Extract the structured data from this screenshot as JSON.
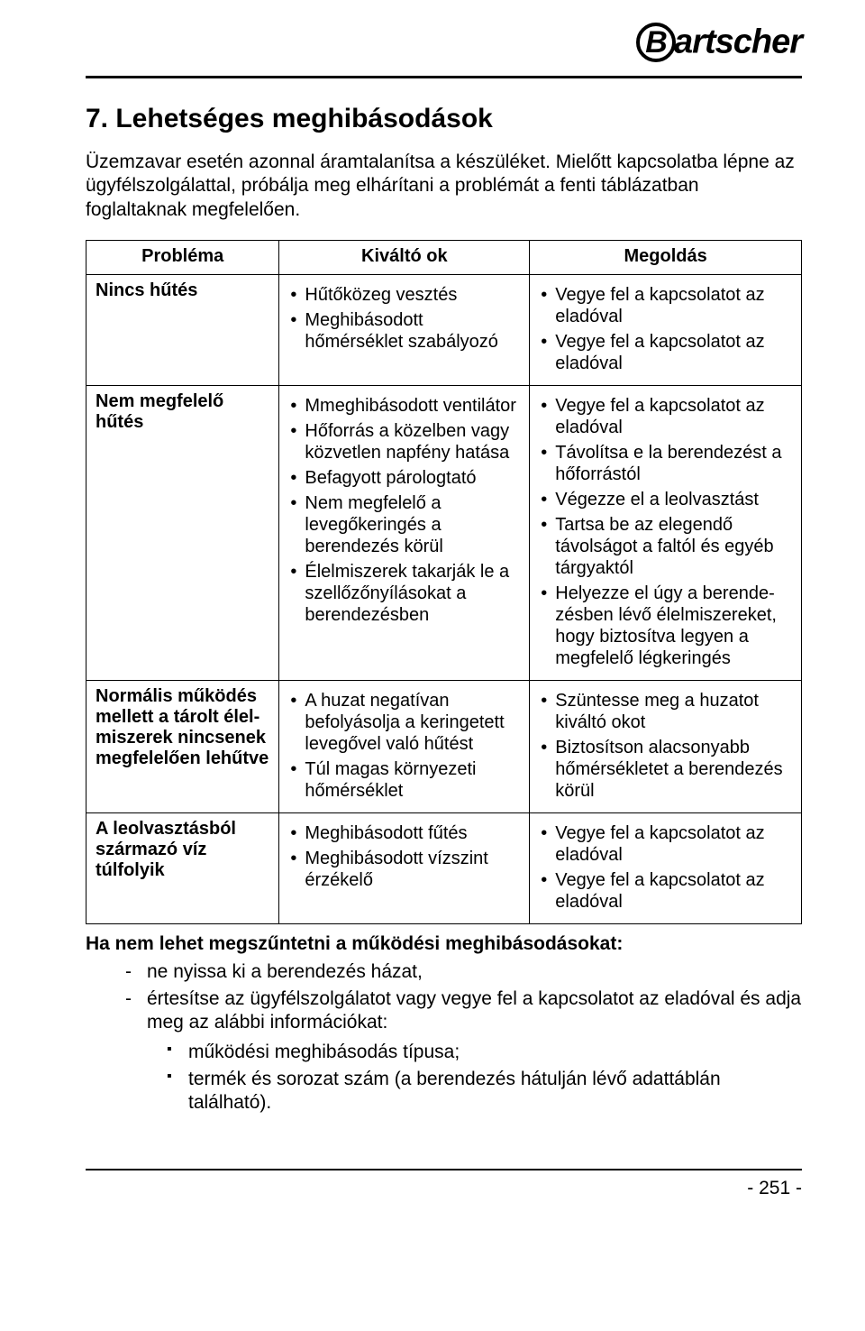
{
  "brand": "artscher",
  "brand_b": "B",
  "heading": "7. Lehetséges meghibásodások",
  "intro": "Üzemzavar esetén azonnal áramtalanítsa a készüléket. Mielőtt kapcsolatba lépne az ügyfélszolgálattal, próbálja meg elhárítani a problémát a fenti táblázatban foglaltaknak megfelelően.",
  "table": {
    "headers": {
      "problem": "Probléma",
      "cause": "Kiváltó ok",
      "solution": "Megoldás"
    },
    "rows": [
      {
        "problem": "Nincs hűtés",
        "causes": [
          "Hűtőközeg vesztés",
          "Meghibásodott hőmérséklet szabályozó"
        ],
        "solutions": [
          "Vegye fel a kapcsolatot az eladóval",
          "Vegye fel a kapcsolatot az eladóval"
        ]
      },
      {
        "problem": "Nem megfelelő hűtés",
        "causes": [
          "Mmeghibásodott ventilátor",
          "Hőforrás a közelben vagy közvetlen napfény hatása",
          "Befagyott párologtató",
          "Nem megfelelő a levegőkeringés a berendezés körül",
          "Élelmiszerek takarják le a szellőzőnyílásokat a berendezésben"
        ],
        "solutions": [
          "Vegye fel a kapcsolatot az eladóval",
          "Távolítsa e la berendezést a hőforrástól",
          "Végezze el a leolvasztást",
          "Tartsa be az elegendő távolságot a faltól és egyéb tárgyaktól",
          "Helyezze el úgy a berende-zésben lévő élelmiszereket, hogy biztosítva legyen a megfelelő légkeringés"
        ]
      },
      {
        "problem": "Normális működés mellett a tárolt élel-miszerek nincsenek megfelelően lehűtve",
        "causes": [
          "A huzat negatívan befolyásolja a keringetett levegővel való hűtést",
          "Túl magas környezeti hőmérséklet"
        ],
        "solutions": [
          "Szüntesse meg a huzatot kiváltó okot",
          "Biztosítson alacsonyabb hőmérsékletet a berendezés körül"
        ]
      },
      {
        "problem": "A leolvasztásból származó víz túlfolyik",
        "causes": [
          "Meghibásodott fűtés",
          "Meghibásodott vízszint érzékelő"
        ],
        "solutions": [
          "Vegye fel a kapcsolatot az eladóval",
          "Vegye fel a kapcsolatot az eladóval"
        ]
      }
    ]
  },
  "after_table_heading": "Ha nem lehet megszűntetni a működési meghibásodásokat:",
  "dash_list": [
    "ne nyissa ki a berendezés házat,",
    "értesítse az ügyfélszolgálatot vagy vegye fel a kapcsolatot az eladóval és adja meg az alábbi információkat:"
  ],
  "square_list": [
    "működési meghibásodás típusa;",
    "termék és sorozat szám (a berendezés hátulján lévő adattáblán található)."
  ],
  "page_number": "- 251 -",
  "colors": {
    "text": "#000000",
    "background": "#ffffff",
    "rule": "#000000"
  }
}
